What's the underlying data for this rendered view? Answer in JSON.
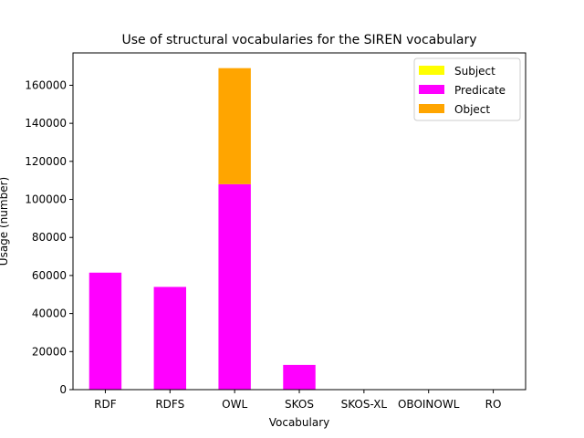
{
  "chart_data": {
    "type": "bar",
    "stacked": true,
    "title": "Use of structural vocabularies for the SIREN vocabulary",
    "xlabel": "Vocabulary",
    "ylabel": "Usage (number)",
    "categories": [
      "RDF",
      "RDFS",
      "OWL",
      "SKOS",
      "SKOS-XL",
      "OBOINOWL",
      "RO"
    ],
    "ylim": [
      0,
      177000
    ],
    "yticks": [
      0,
      20000,
      40000,
      60000,
      80000,
      100000,
      120000,
      140000,
      160000
    ],
    "series": [
      {
        "name": "Subject",
        "color": "#ffff00",
        "values": [
          0,
          0,
          0,
          0,
          0,
          0,
          0
        ]
      },
      {
        "name": "Predicate",
        "color": "#ff00ff",
        "values": [
          61500,
          54000,
          108000,
          13000,
          0,
          0,
          0
        ]
      },
      {
        "name": "Object",
        "color": "#ffa500",
        "values": [
          0,
          0,
          61000,
          0,
          0,
          0,
          0
        ]
      }
    ],
    "legend_position": "top-right",
    "grid": false
  }
}
